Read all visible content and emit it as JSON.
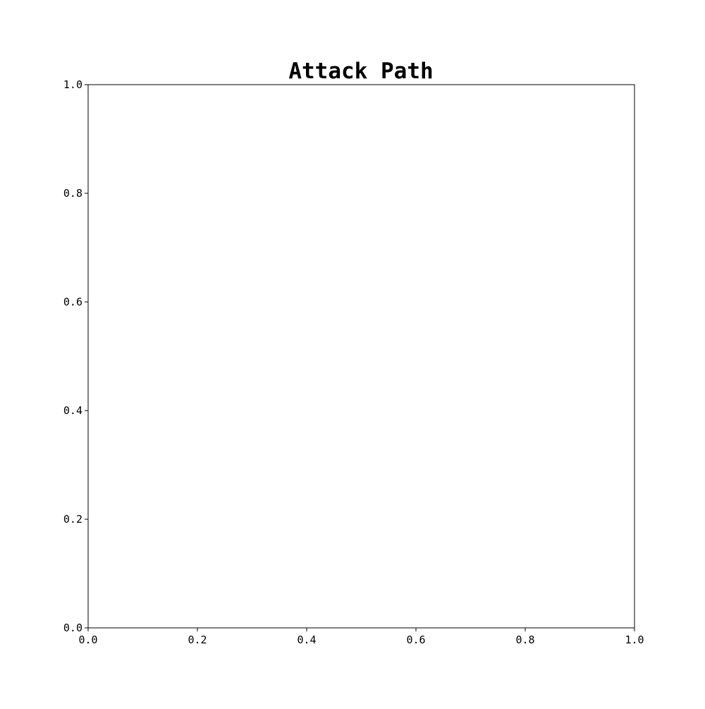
{
  "chart_data": {
    "type": "scatter",
    "title": "Attack Path",
    "xlabel": "",
    "ylabel": "",
    "xlim": [
      0.0,
      1.0
    ],
    "ylim": [
      0.0,
      1.0
    ],
    "x_ticks": [
      "0.0",
      "0.2",
      "0.4",
      "0.6",
      "0.8",
      "1.0"
    ],
    "y_ticks": [
      "0.0",
      "0.2",
      "0.4",
      "0.6",
      "0.8",
      "1.0"
    ],
    "grid": false,
    "series": []
  }
}
